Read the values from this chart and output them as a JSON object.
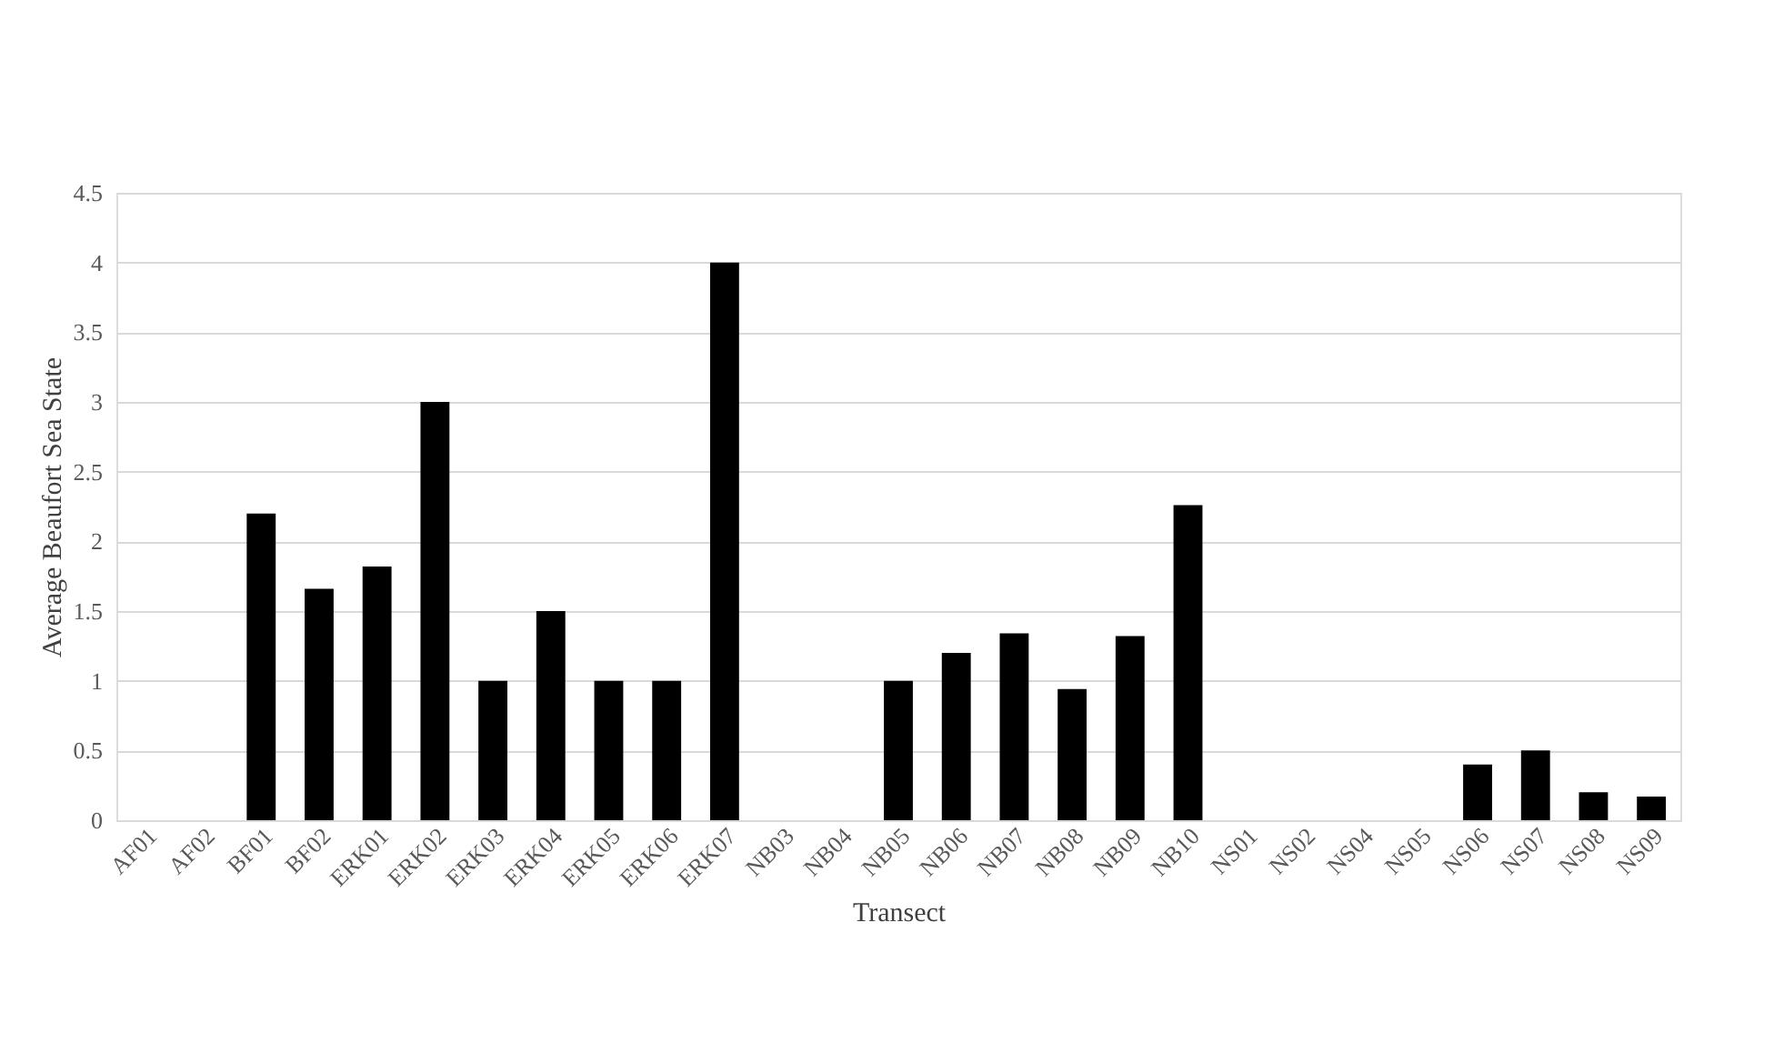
{
  "chart_data": {
    "type": "bar",
    "xlabel": "Transect",
    "ylabel": "Average Beaufort Sea State",
    "categories": [
      "AF01",
      "AF02",
      "BF01",
      "BF02",
      "ERK01",
      "ERK02",
      "ERK03",
      "ERK04",
      "ERK05",
      "ERK06",
      "ERK07",
      "NB03",
      "NB04",
      "NB05",
      "NB06",
      "NB07",
      "NB08",
      "NB09",
      "NB10",
      "NS01",
      "NS02",
      "NS04",
      "NS05",
      "NS06",
      "NS07",
      "NS08",
      "NS09"
    ],
    "values": [
      0,
      0,
      2.2,
      1.66,
      1.82,
      3,
      1,
      1.5,
      1,
      1,
      4,
      0,
      0,
      1,
      1.2,
      1.34,
      0.94,
      1.32,
      2.26,
      0,
      0,
      0,
      0,
      0.4,
      0.5,
      0.2,
      0.17
    ],
    "color": "#000000",
    "ylim": [
      0,
      4.5
    ],
    "yticks": [
      0,
      0.5,
      1,
      1.5,
      2,
      2.5,
      3,
      3.5,
      4,
      4.5
    ],
    "grid": "y"
  }
}
